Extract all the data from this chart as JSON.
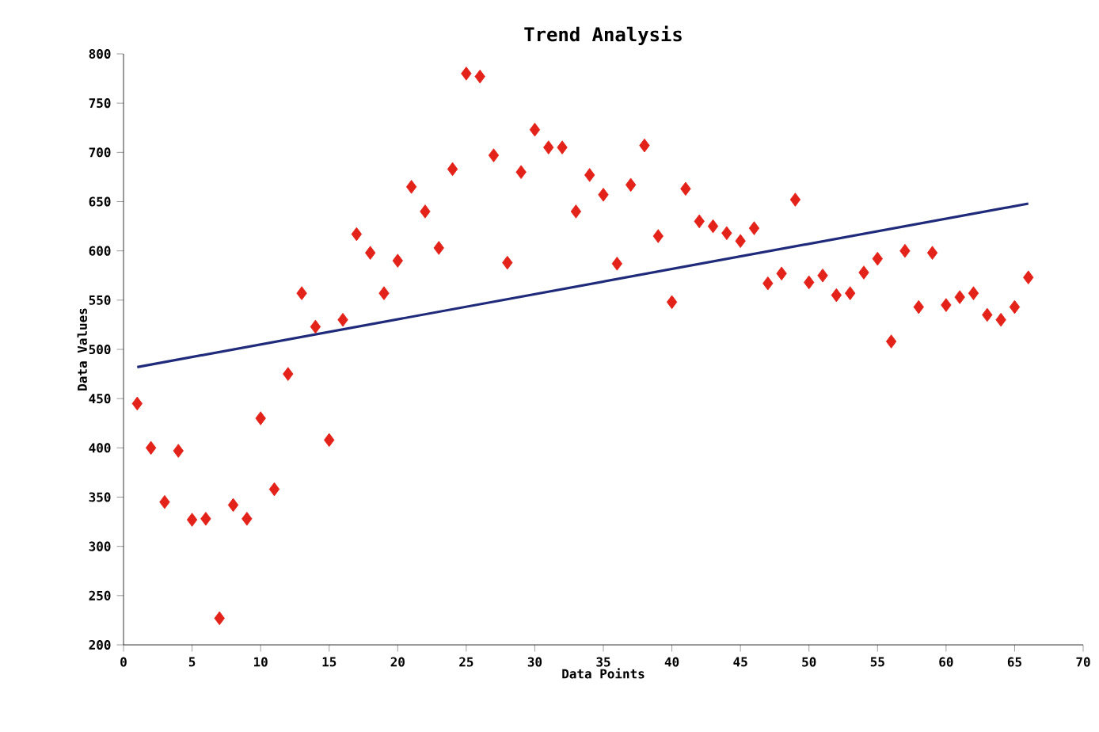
{
  "chart_data": {
    "type": "scatter",
    "title": "Trend Analysis",
    "xlabel": "Data Points",
    "ylabel": "Data Values",
    "marker": "diamond",
    "grid": false,
    "xlim": [
      0,
      70
    ],
    "xticks": [
      0,
      5,
      10,
      15,
      20,
      25,
      30,
      35,
      40,
      45,
      50,
      55,
      60,
      65,
      70
    ],
    "ylim": [
      200,
      800
    ],
    "yticks": [
      200,
      250,
      300,
      350,
      400,
      450,
      500,
      550,
      600,
      650,
      700,
      750,
      800
    ],
    "series": [
      {
        "color": "#e32219",
        "x": [
          1,
          2,
          3,
          4,
          5,
          6,
          7,
          8,
          9,
          10,
          11,
          12,
          13,
          14,
          15,
          16,
          17,
          18,
          19,
          20,
          21,
          22,
          23,
          24,
          25,
          26,
          27,
          28,
          29,
          30,
          31,
          32,
          33,
          34,
          35,
          36,
          37,
          38,
          39,
          40,
          41,
          42,
          43,
          44,
          45,
          46,
          47,
          48,
          49,
          50,
          51,
          52,
          53,
          54,
          55,
          56,
          57,
          58,
          59,
          60,
          61,
          62,
          63,
          64,
          65,
          66
        ],
        "values": [
          445,
          400,
          345,
          397,
          327,
          328,
          227,
          342,
          328,
          430,
          358,
          475,
          557,
          523,
          408,
          530,
          617,
          598,
          557,
          590,
          665,
          640,
          603,
          683,
          780,
          777,
          697,
          588,
          680,
          723,
          705,
          705,
          640,
          677,
          657,
          587,
          667,
          707,
          615,
          548,
          663,
          630,
          625,
          618,
          610,
          623,
          567,
          577,
          652,
          568,
          575,
          555,
          557,
          578,
          592,
          508,
          600,
          543,
          598,
          545,
          553,
          557,
          535,
          530,
          543,
          573
        ]
      },
      {
        "type": "line",
        "marker": "none",
        "color": "#1f2a7a",
        "x": [
          1,
          66
        ],
        "values": [
          482,
          648
        ]
      }
    ]
  }
}
